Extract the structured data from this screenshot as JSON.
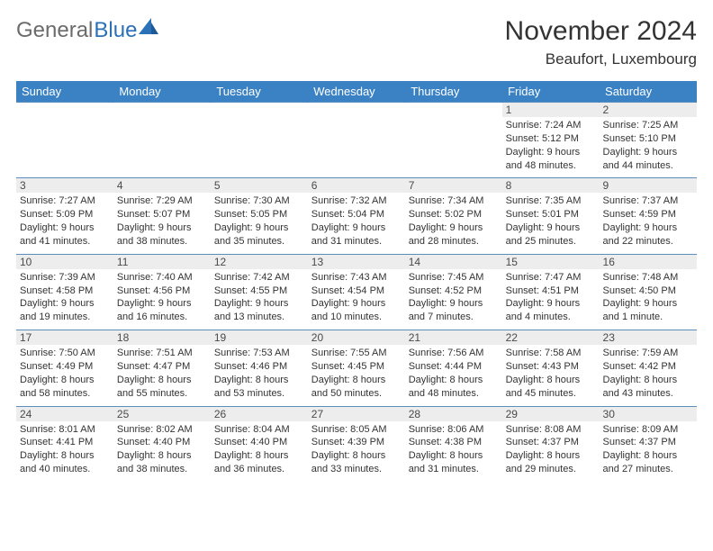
{
  "logo": {
    "text1": "General",
    "text2": "Blue"
  },
  "title": "November 2024",
  "location": "Beaufort, Luxembourg",
  "colors": {
    "header_bg": "#3b82c4",
    "header_text": "#ffffff",
    "daynum_bg": "#ededed",
    "row_border": "#5a8fbd",
    "logo_gray": "#6b6b6b",
    "logo_blue": "#2a71b8"
  },
  "day_headers": [
    "Sunday",
    "Monday",
    "Tuesday",
    "Wednesday",
    "Thursday",
    "Friday",
    "Saturday"
  ],
  "weeks": [
    [
      null,
      null,
      null,
      null,
      null,
      {
        "n": "1",
        "sr": "7:24 AM",
        "ss": "5:12 PM",
        "dl": "9 hours and 48 minutes."
      },
      {
        "n": "2",
        "sr": "7:25 AM",
        "ss": "5:10 PM",
        "dl": "9 hours and 44 minutes."
      }
    ],
    [
      {
        "n": "3",
        "sr": "7:27 AM",
        "ss": "5:09 PM",
        "dl": "9 hours and 41 minutes."
      },
      {
        "n": "4",
        "sr": "7:29 AM",
        "ss": "5:07 PM",
        "dl": "9 hours and 38 minutes."
      },
      {
        "n": "5",
        "sr": "7:30 AM",
        "ss": "5:05 PM",
        "dl": "9 hours and 35 minutes."
      },
      {
        "n": "6",
        "sr": "7:32 AM",
        "ss": "5:04 PM",
        "dl": "9 hours and 31 minutes."
      },
      {
        "n": "7",
        "sr": "7:34 AM",
        "ss": "5:02 PM",
        "dl": "9 hours and 28 minutes."
      },
      {
        "n": "8",
        "sr": "7:35 AM",
        "ss": "5:01 PM",
        "dl": "9 hours and 25 minutes."
      },
      {
        "n": "9",
        "sr": "7:37 AM",
        "ss": "4:59 PM",
        "dl": "9 hours and 22 minutes."
      }
    ],
    [
      {
        "n": "10",
        "sr": "7:39 AM",
        "ss": "4:58 PM",
        "dl": "9 hours and 19 minutes."
      },
      {
        "n": "11",
        "sr": "7:40 AM",
        "ss": "4:56 PM",
        "dl": "9 hours and 16 minutes."
      },
      {
        "n": "12",
        "sr": "7:42 AM",
        "ss": "4:55 PM",
        "dl": "9 hours and 13 minutes."
      },
      {
        "n": "13",
        "sr": "7:43 AM",
        "ss": "4:54 PM",
        "dl": "9 hours and 10 minutes."
      },
      {
        "n": "14",
        "sr": "7:45 AM",
        "ss": "4:52 PM",
        "dl": "9 hours and 7 minutes."
      },
      {
        "n": "15",
        "sr": "7:47 AM",
        "ss": "4:51 PM",
        "dl": "9 hours and 4 minutes."
      },
      {
        "n": "16",
        "sr": "7:48 AM",
        "ss": "4:50 PM",
        "dl": "9 hours and 1 minute."
      }
    ],
    [
      {
        "n": "17",
        "sr": "7:50 AM",
        "ss": "4:49 PM",
        "dl": "8 hours and 58 minutes."
      },
      {
        "n": "18",
        "sr": "7:51 AM",
        "ss": "4:47 PM",
        "dl": "8 hours and 55 minutes."
      },
      {
        "n": "19",
        "sr": "7:53 AM",
        "ss": "4:46 PM",
        "dl": "8 hours and 53 minutes."
      },
      {
        "n": "20",
        "sr": "7:55 AM",
        "ss": "4:45 PM",
        "dl": "8 hours and 50 minutes."
      },
      {
        "n": "21",
        "sr": "7:56 AM",
        "ss": "4:44 PM",
        "dl": "8 hours and 48 minutes."
      },
      {
        "n": "22",
        "sr": "7:58 AM",
        "ss": "4:43 PM",
        "dl": "8 hours and 45 minutes."
      },
      {
        "n": "23",
        "sr": "7:59 AM",
        "ss": "4:42 PM",
        "dl": "8 hours and 43 minutes."
      }
    ],
    [
      {
        "n": "24",
        "sr": "8:01 AM",
        "ss": "4:41 PM",
        "dl": "8 hours and 40 minutes."
      },
      {
        "n": "25",
        "sr": "8:02 AM",
        "ss": "4:40 PM",
        "dl": "8 hours and 38 minutes."
      },
      {
        "n": "26",
        "sr": "8:04 AM",
        "ss": "4:40 PM",
        "dl": "8 hours and 36 minutes."
      },
      {
        "n": "27",
        "sr": "8:05 AM",
        "ss": "4:39 PM",
        "dl": "8 hours and 33 minutes."
      },
      {
        "n": "28",
        "sr": "8:06 AM",
        "ss": "4:38 PM",
        "dl": "8 hours and 31 minutes."
      },
      {
        "n": "29",
        "sr": "8:08 AM",
        "ss": "4:37 PM",
        "dl": "8 hours and 29 minutes."
      },
      {
        "n": "30",
        "sr": "8:09 AM",
        "ss": "4:37 PM",
        "dl": "8 hours and 27 minutes."
      }
    ]
  ],
  "labels": {
    "sunrise": "Sunrise:",
    "sunset": "Sunset:",
    "daylight": "Daylight:"
  }
}
